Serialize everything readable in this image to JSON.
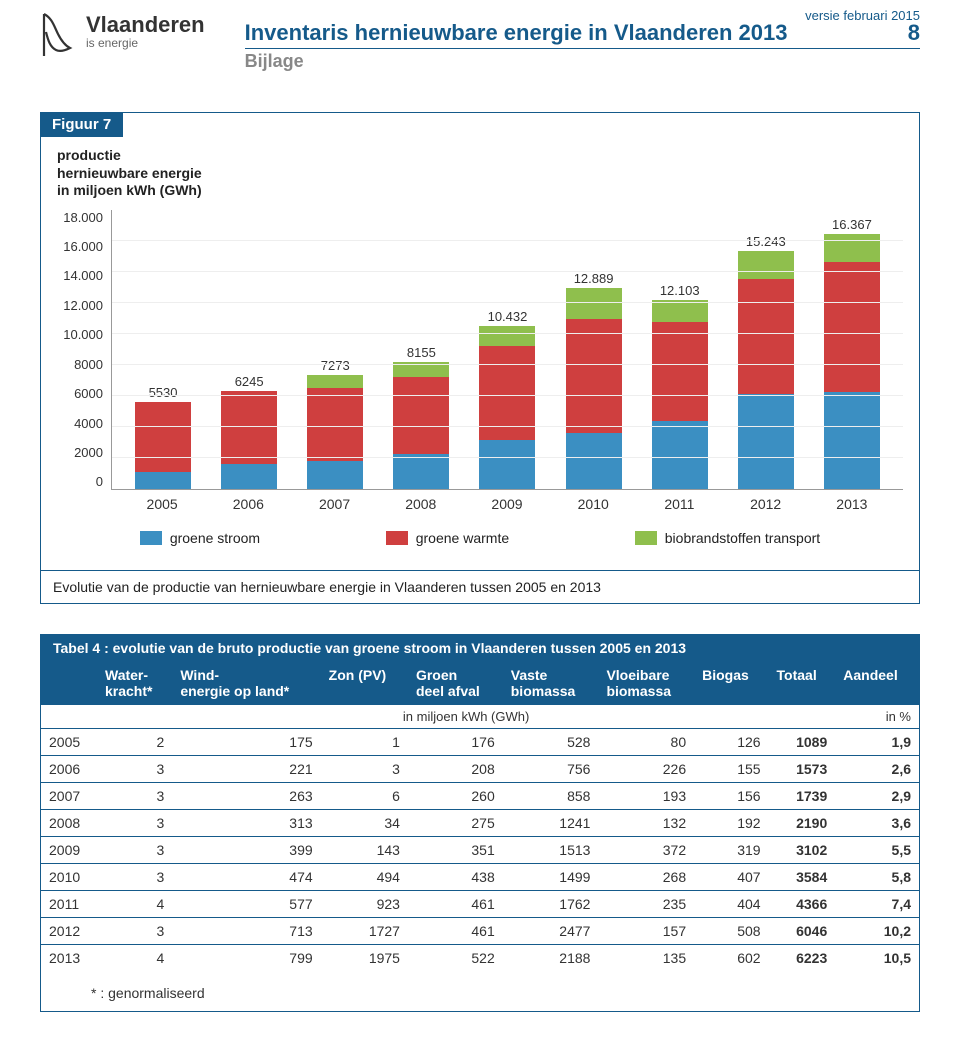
{
  "header": {
    "brand_title": "Vlaanderen",
    "brand_sub": "is energie",
    "doc_title": "Inventaris hernieuwbare energie in Vlaanderen 2013",
    "page_number": "8",
    "version": "versie februari 2015",
    "bijlage": "Bijlage"
  },
  "figure": {
    "title": "Figuur 7",
    "subtitle_line1": "productie",
    "subtitle_line2": "hernieuwbare energie",
    "subtitle_line3": "in miljoen kWh (GWh)",
    "caption": "Evolutie van de productie van hernieuwbare energie in Vlaanderen tussen 2005 en 2013",
    "y_ticks": [
      "18.000",
      "16.000",
      "14.000",
      "12.000",
      "10.000",
      "8000",
      "6000",
      "4000",
      "2000",
      "0"
    ],
    "y_max": 18000,
    "colors": {
      "groene_stroom": "#3b8fc2",
      "groene_warmte": "#cf3f3f",
      "biobrandstoffen": "#8fbf4d"
    },
    "legend": {
      "groene_stroom": "groene stroom",
      "groene_warmte": "groene warmte",
      "biobrandstoffen": "biobrandstoffen transport"
    },
    "series": [
      {
        "year": "2005",
        "total_label": "5530",
        "stroom": 1089,
        "warmte": 4441,
        "bio": 0
      },
      {
        "year": "2006",
        "total_label": "6245",
        "stroom": 1573,
        "warmte": 4672,
        "bio": 0
      },
      {
        "year": "2007",
        "total_label": "7273",
        "stroom": 1739,
        "warmte": 4734,
        "bio": 800
      },
      {
        "year": "2008",
        "total_label": "8155",
        "stroom": 2190,
        "warmte": 4965,
        "bio": 1000
      },
      {
        "year": "2009",
        "total_label": "10.432",
        "stroom": 3102,
        "warmte": 6030,
        "bio": 1300
      },
      {
        "year": "2010",
        "total_label": "12.889",
        "stroom": 3584,
        "warmte": 7305,
        "bio": 2000
      },
      {
        "year": "2011",
        "total_label": "12.103",
        "stroom": 4366,
        "warmte": 6337,
        "bio": 1400
      },
      {
        "year": "2012",
        "total_label": "15.243",
        "stroom": 6046,
        "warmte": 7397,
        "bio": 1800
      },
      {
        "year": "2013",
        "total_label": "16.367",
        "stroom": 6223,
        "warmte": 8344,
        "bio": 1800
      }
    ]
  },
  "table": {
    "title": "Tabel 4 : evolutie van de bruto productie van groene stroom in Vlaanderen tussen 2005 en 2013",
    "columns": [
      "",
      "Water-\nkracht*",
      "Wind-\nenergie op land*",
      "Zon (PV)",
      "Groen\ndeel afval",
      "Vaste\nbiomassa",
      "Vloeibare\nbiomassa",
      "Biogas",
      "Totaal",
      "Aandeel"
    ],
    "unit_left": "in miljoen kWh (GWh)",
    "unit_right": "in %",
    "rows": [
      [
        "2005",
        "2",
        "175",
        "1",
        "176",
        "528",
        "80",
        "126",
        "1089",
        "1,9"
      ],
      [
        "2006",
        "3",
        "221",
        "3",
        "208",
        "756",
        "226",
        "155",
        "1573",
        "2,6"
      ],
      [
        "2007",
        "3",
        "263",
        "6",
        "260",
        "858",
        "193",
        "156",
        "1739",
        "2,9"
      ],
      [
        "2008",
        "3",
        "313",
        "34",
        "275",
        "1241",
        "132",
        "192",
        "2190",
        "3,6"
      ],
      [
        "2009",
        "3",
        "399",
        "143",
        "351",
        "1513",
        "372",
        "319",
        "3102",
        "5,5"
      ],
      [
        "2010",
        "3",
        "474",
        "494",
        "438",
        "1499",
        "268",
        "407",
        "3584",
        "5,8"
      ],
      [
        "2011",
        "4",
        "577",
        "923",
        "461",
        "1762",
        "235",
        "404",
        "4366",
        "7,4"
      ],
      [
        "2012",
        "3",
        "713",
        "1727",
        "461",
        "2477",
        "157",
        "508",
        "6046",
        "10,2"
      ],
      [
        "2013",
        "4",
        "799",
        "1975",
        "522",
        "2188",
        "135",
        "602",
        "6223",
        "10,5"
      ]
    ],
    "footnote": "* :  genormaliseerd"
  }
}
